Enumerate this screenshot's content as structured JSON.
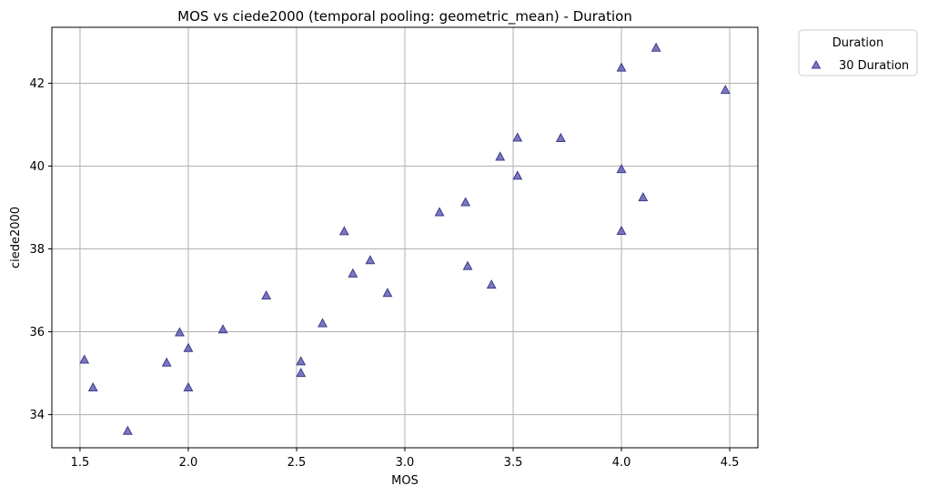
{
  "chart_data": {
    "type": "scatter",
    "title": "MOS vs ciede2000 (temporal pooling: geometric_mean) - Duration",
    "xlabel": "MOS",
    "ylabel": "ciede2000",
    "xlim": [
      1.37,
      4.63
    ],
    "ylim": [
      33.2,
      43.35
    ],
    "xticks": [
      1.5,
      2.0,
      2.5,
      3.0,
      3.5,
      4.0,
      4.5
    ],
    "xtick_labels": [
      "1.5",
      "2.0",
      "2.5",
      "3.0",
      "3.5",
      "4.0",
      "4.5"
    ],
    "yticks": [
      34,
      36,
      38,
      40,
      42
    ],
    "ytick_labels": [
      "34",
      "36",
      "38",
      "40",
      "42"
    ],
    "grid": true,
    "legend": {
      "title": "Duration",
      "placement": "outside-top-right"
    },
    "series": [
      {
        "name": "30 Duration",
        "marker": "triangle",
        "color": "#5a55b0",
        "points": [
          {
            "x": 1.52,
            "y": 35.32
          },
          {
            "x": 1.56,
            "y": 34.65
          },
          {
            "x": 1.72,
            "y": 33.6
          },
          {
            "x": 1.9,
            "y": 35.25
          },
          {
            "x": 1.96,
            "y": 35.98
          },
          {
            "x": 2.0,
            "y": 35.6
          },
          {
            "x": 2.0,
            "y": 34.65
          },
          {
            "x": 2.16,
            "y": 36.05
          },
          {
            "x": 2.36,
            "y": 36.87
          },
          {
            "x": 2.52,
            "y": 35.28
          },
          {
            "x": 2.52,
            "y": 35.0
          },
          {
            "x": 2.62,
            "y": 36.2
          },
          {
            "x": 2.72,
            "y": 38.42
          },
          {
            "x": 2.76,
            "y": 37.4
          },
          {
            "x": 2.84,
            "y": 37.72
          },
          {
            "x": 2.92,
            "y": 36.93
          },
          {
            "x": 3.16,
            "y": 38.88
          },
          {
            "x": 3.28,
            "y": 39.12
          },
          {
            "x": 3.29,
            "y": 37.58
          },
          {
            "x": 3.4,
            "y": 37.13
          },
          {
            "x": 3.44,
            "y": 40.22
          },
          {
            "x": 3.52,
            "y": 40.68
          },
          {
            "x": 3.52,
            "y": 39.76
          },
          {
            "x": 3.72,
            "y": 40.67
          },
          {
            "x": 4.0,
            "y": 42.37
          },
          {
            "x": 4.0,
            "y": 39.92
          },
          {
            "x": 4.0,
            "y": 38.43
          },
          {
            "x": 4.1,
            "y": 39.24
          },
          {
            "x": 4.16,
            "y": 42.85
          },
          {
            "x": 4.48,
            "y": 41.83
          }
        ]
      }
    ]
  }
}
